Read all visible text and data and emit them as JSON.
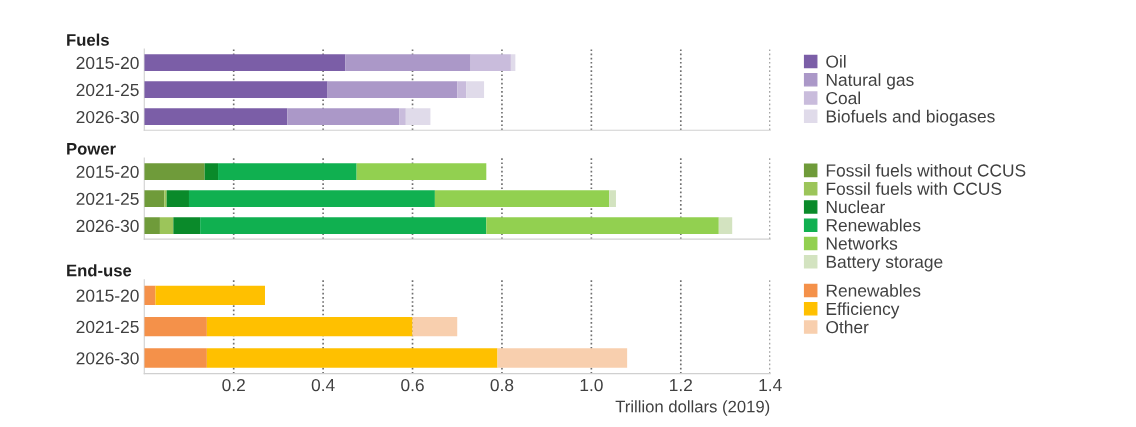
{
  "chart_data": [
    {
      "type": "bar",
      "orientation": "horizontal",
      "stacked": true,
      "title": "Fuels",
      "categories": [
        "2015-20",
        "2021-25",
        "2026-30"
      ],
      "xlim": [
        0,
        1.4
      ],
      "xticks": [
        {
          "value": 0.2,
          "label": null
        },
        {
          "value": 0.4,
          "label": null
        },
        {
          "value": 0.6,
          "label": null
        },
        {
          "value": 0.8,
          "label": null
        },
        {
          "value": 1,
          "label": null
        },
        {
          "value": 1.2,
          "label": null
        },
        {
          "value": 1.4,
          "label": null
        }
      ],
      "grid": "x",
      "legend": "right",
      "tick_labels": "y",
      "series": [
        {
          "name": "Oil",
          "color": "#7b5ea7",
          "values": [
            0.45,
            0.41,
            0.32
          ]
        },
        {
          "name": "Natural gas",
          "color": "#ab98c8",
          "values": [
            0.28,
            0.29,
            0.25
          ]
        },
        {
          "name": "Coal",
          "color": "#c9bcdc",
          "values": [
            0.09,
            0.02,
            0.015
          ]
        },
        {
          "name": "Biofuels and biogases",
          "color": "#e0dbea",
          "values": [
            0.01,
            0.04,
            0.055
          ]
        }
      ]
    },
    {
      "type": "bar",
      "orientation": "horizontal",
      "stacked": true,
      "title": "Power",
      "categories": [
        "2015-20",
        "2021-25",
        "2026-30"
      ],
      "xlim": [
        0,
        1.4
      ],
      "xticks": [
        {
          "value": 0.2,
          "label": null
        },
        {
          "value": 0.4,
          "label": null
        },
        {
          "value": 0.6,
          "label": null
        },
        {
          "value": 0.8,
          "label": null
        },
        {
          "value": 1,
          "label": null
        },
        {
          "value": 1.2,
          "label": null
        },
        {
          "value": 1.4,
          "label": null
        }
      ],
      "grid": "x",
      "legend": "right",
      "tick_labels": "y",
      "series": [
        {
          "name": "Fossil fuels without CCUS",
          "color": "#6f9b3a",
          "values": [
            0.135,
            0.045,
            0.035
          ]
        },
        {
          "name": "Fossil fuels with CCUS",
          "color": "#9cc55a",
          "values": [
            0,
            0.005,
            0.03
          ]
        },
        {
          "name": "Nuclear",
          "color": "#0a8a2a",
          "values": [
            0.03,
            0.05,
            0.06
          ]
        },
        {
          "name": "Renewables",
          "color": "#10b050",
          "values": [
            0.31,
            0.55,
            0.64
          ]
        },
        {
          "name": "Networks",
          "color": "#92d050",
          "values": [
            0.29,
            0.39,
            0.52
          ]
        },
        {
          "name": "Battery storage",
          "color": "#d3e3c0",
          "values": [
            0,
            0.015,
            0.03
          ]
        }
      ]
    },
    {
      "type": "bar",
      "orientation": "horizontal",
      "stacked": true,
      "title": "End-use",
      "categories": [
        "2015-20",
        "2021-25",
        "2026-30"
      ],
      "xlabel": "Trillion dollars (2019)",
      "xlim": [
        0,
        1.4
      ],
      "xticks": [
        0.2,
        0.4,
        0.6,
        0.8,
        {
          "value": 1,
          "label": "1.0"
        },
        1.2,
        1.4
      ],
      "grid": "x",
      "legend": "right",
      "series": [
        {
          "name": "Renewables",
          "color": "#f4914a",
          "values": [
            0.025,
            0.14,
            0.14
          ]
        },
        {
          "name": "Efficiency",
          "color": "#ffc000",
          "values": [
            0.245,
            0.46,
            0.65
          ]
        },
        {
          "name": "Other",
          "color": "#f8cfae",
          "values": [
            0,
            0.1,
            0.29
          ]
        }
      ]
    }
  ]
}
